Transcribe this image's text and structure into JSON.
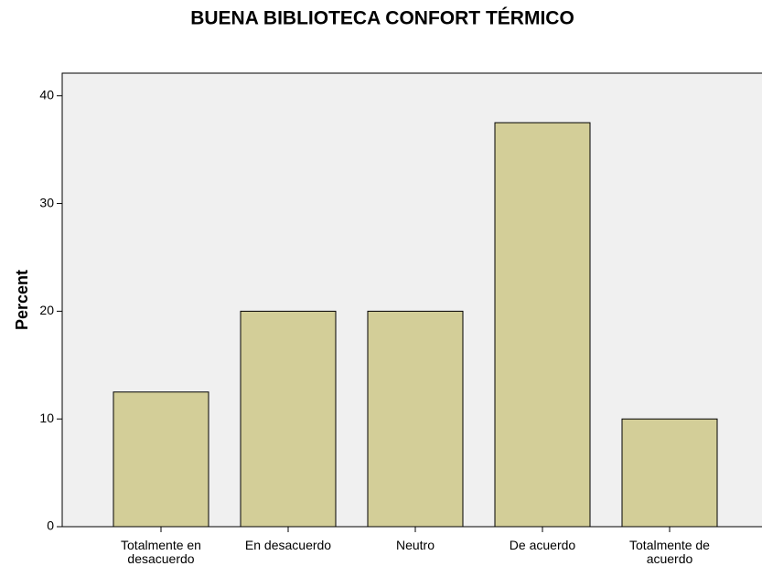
{
  "chart_data": {
    "type": "bar",
    "title": "BUENA BIBLIOTECA CONFORT TÉRMICO",
    "y_label": "Percent",
    "categories": [
      "Totalmente en desacuerdo",
      "En desacuerdo",
      "Neutro",
      "De acuerdo",
      "Totalmente de acuerdo"
    ],
    "values": [
      12.5,
      20,
      20,
      37.5,
      10
    ],
    "color": "#d3ce98",
    "ylim": [
      0,
      42.1
    ],
    "yticks": [
      0,
      10,
      20,
      30,
      40
    ],
    "grid": false
  }
}
